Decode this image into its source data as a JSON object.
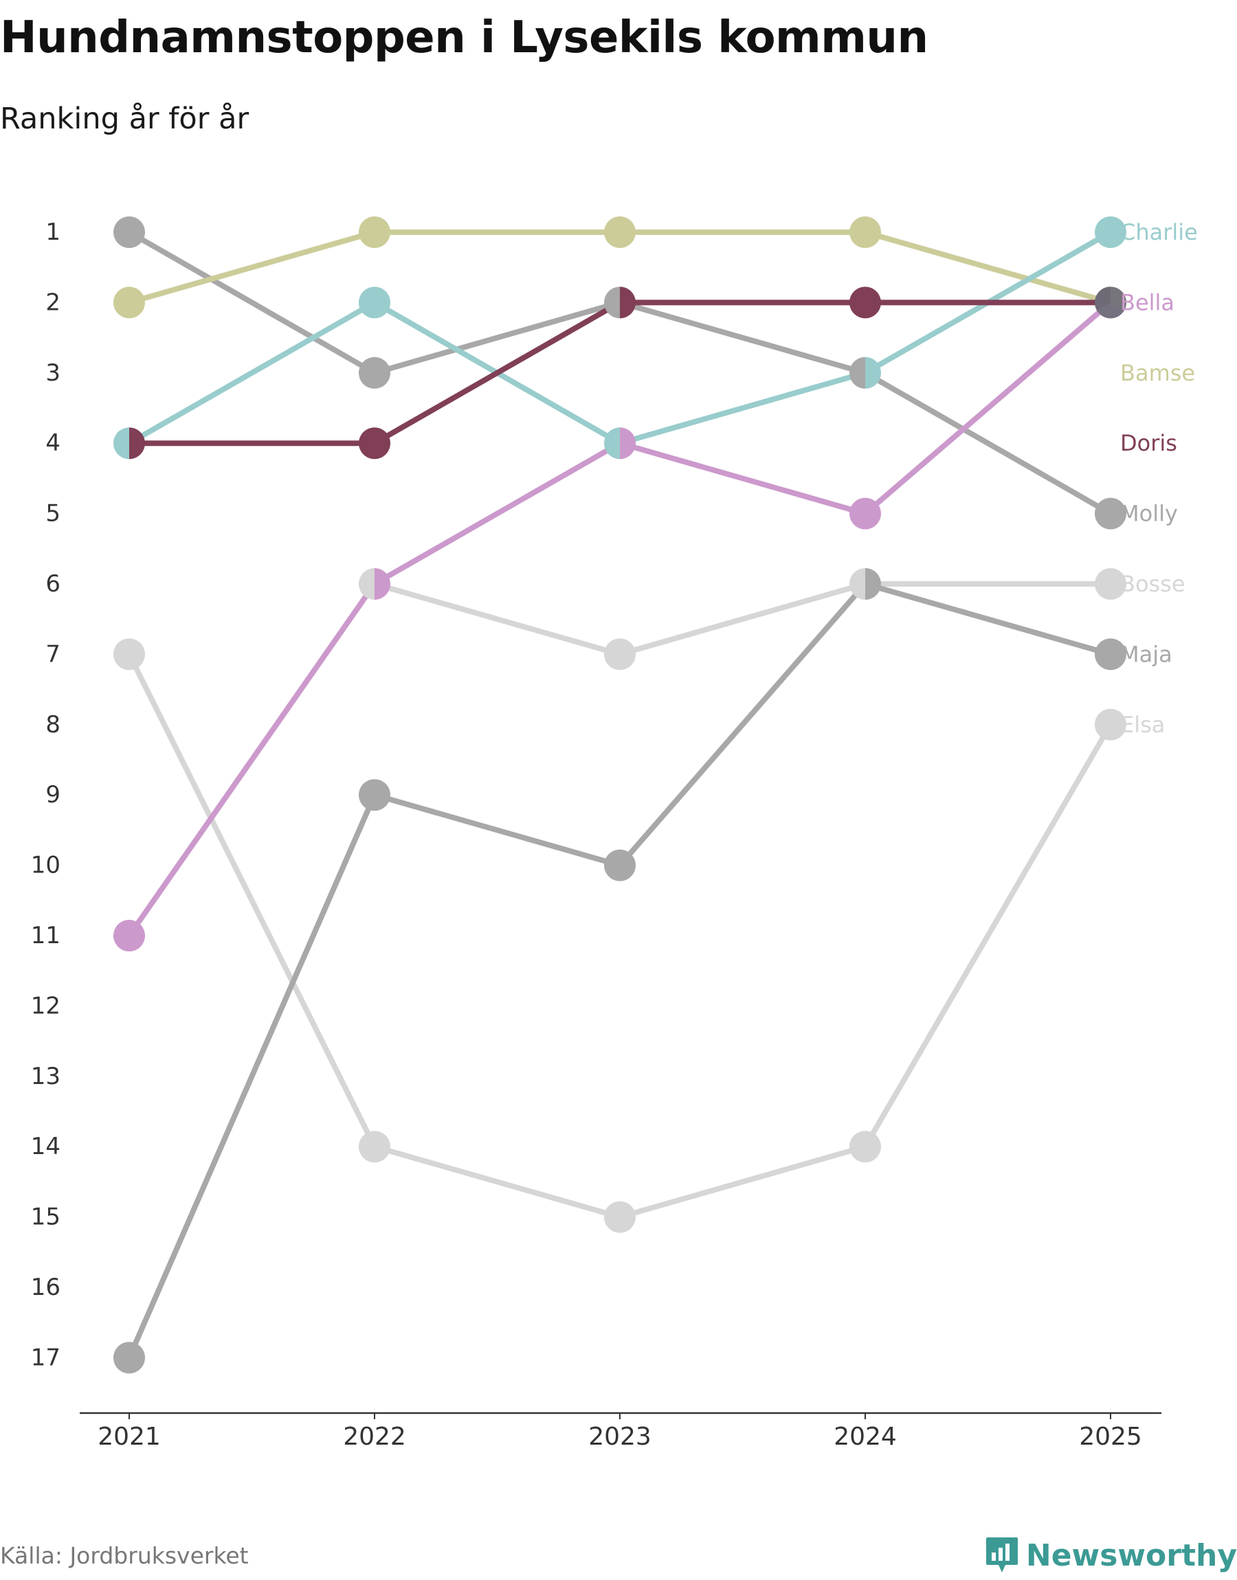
{
  "header": {
    "title": "Hundnamnstoppen i Lysekils kommun",
    "subtitle": "Ranking år för år"
  },
  "footer": {
    "source": "Källa: Jordbruksverket",
    "brand": "Newsworthy",
    "brand_color": "#3c9a94",
    "brand_icon": "bar-chart-icon"
  },
  "chart_data": {
    "type": "line",
    "title": "Hundnamnstoppen i Lysekils kommun",
    "subtitle": "Ranking år för år",
    "xlabel": "",
    "ylabel": "",
    "x": [
      "2021",
      "2022",
      "2023",
      "2024",
      "2025"
    ],
    "y_ticks": [
      1,
      2,
      3,
      4,
      5,
      6,
      7,
      8,
      9,
      10,
      11,
      12,
      13,
      14,
      15,
      16,
      17
    ],
    "ylim": [
      1,
      17
    ],
    "y_inverted": true,
    "grid": false,
    "series": [
      {
        "name": "Elsa",
        "color": "#d6d6d6",
        "values": [
          7,
          14,
          15,
          14,
          8
        ]
      },
      {
        "name": "Bosse",
        "color": "#d6d6d6",
        "values": [
          null,
          6,
          7,
          6,
          6
        ]
      },
      {
        "name": "Maja",
        "color": "#a8a8a8",
        "values": [
          17,
          9,
          10,
          6,
          7
        ]
      },
      {
        "name": "Molly",
        "color": "#a8a8a8",
        "values": [
          1,
          3,
          2,
          3,
          5
        ]
      },
      {
        "name": "Bamse",
        "color": "#cccc99",
        "values": [
          2,
          1,
          1,
          1,
          2
        ]
      },
      {
        "name": "Charlie",
        "color": "#99cccc",
        "values": [
          4,
          2,
          4,
          3,
          1
        ]
      },
      {
        "name": "Bella",
        "color": "#cc99cc",
        "values": [
          11,
          6,
          4,
          5,
          2
        ]
      },
      {
        "name": "Doris",
        "color": "#803f56",
        "values": [
          4,
          4,
          2,
          2,
          2
        ]
      }
    ],
    "legend_order": [
      "Charlie",
      "Bella",
      "Bamse",
      "Doris",
      "Molly",
      "Bosse",
      "Maja",
      "Elsa"
    ],
    "legend_position": "right"
  }
}
